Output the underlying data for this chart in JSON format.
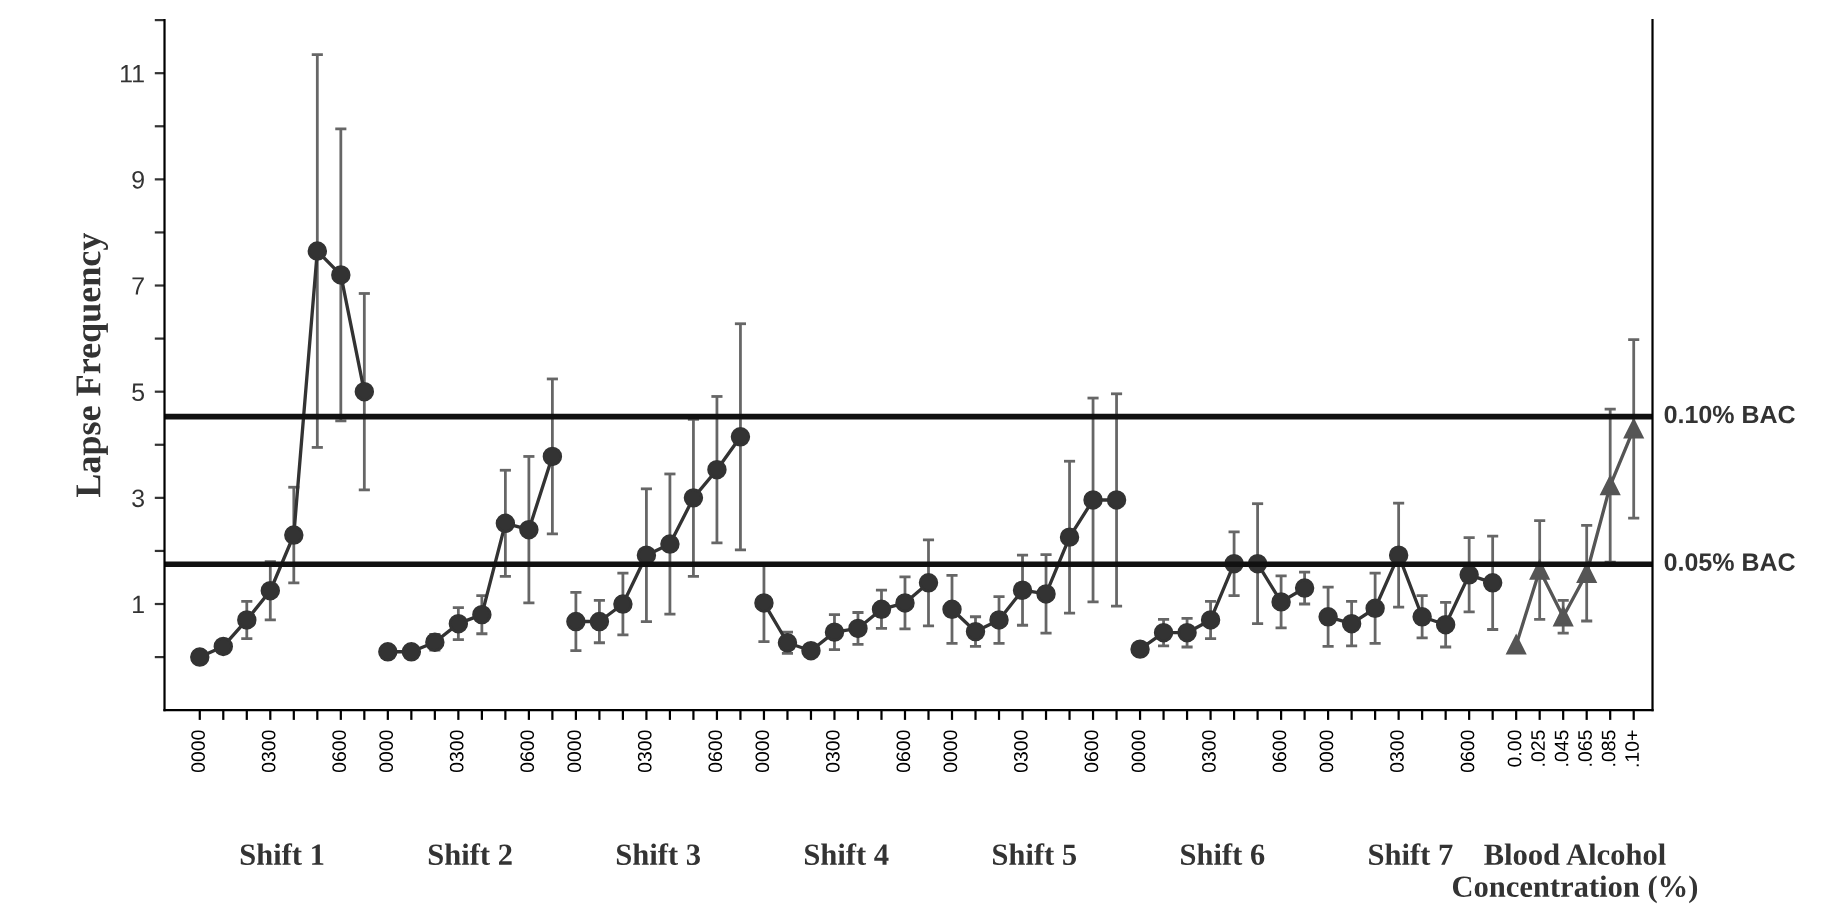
{
  "chart_data": {
    "type": "line",
    "ylabel": "Lapse Frequency",
    "categories": [
      "0000",
      null,
      null,
      "0300",
      null,
      null,
      "0600",
      null,
      "0000",
      null,
      null,
      "0300",
      null,
      null,
      "0600",
      null,
      "0000",
      null,
      null,
      "0300",
      null,
      null,
      "0600",
      null,
      "0000",
      null,
      null,
      "0300",
      null,
      null,
      "0600",
      null,
      "0000",
      null,
      null,
      "0300",
      null,
      null,
      "0600",
      null,
      "0000",
      null,
      null,
      "0300",
      null,
      null,
      "0600",
      null,
      "0000",
      null,
      null,
      "0300",
      null,
      null,
      "0600",
      null,
      "0.00",
      ".025",
      ".045",
      ".065",
      ".085",
      ".10+"
    ],
    "series": [
      {
        "color": "#333333",
        "marker": "circle",
        "values": [
          0.0,
          0.2,
          0.7,
          1.25,
          2.3,
          7.65,
          7.2,
          5.0,
          null,
          null,
          null,
          null,
          null,
          null,
          null,
          null,
          null,
          null,
          null,
          null,
          null,
          null,
          null,
          null,
          null,
          null,
          null,
          null,
          null,
          null,
          null,
          null,
          null,
          null,
          null,
          null,
          null,
          null,
          null,
          null,
          null,
          null,
          null,
          null,
          null,
          null,
          null,
          null,
          null,
          null,
          null,
          null,
          null,
          null,
          null,
          null,
          null,
          null,
          null,
          null,
          null,
          null
        ],
        "errors": [
          null,
          null,
          0.35,
          0.55,
          0.9,
          3.7,
          2.75,
          1.85,
          null,
          null,
          null,
          null,
          null,
          null,
          null,
          null,
          null,
          null,
          null,
          null,
          null,
          null,
          null,
          null,
          null,
          null,
          null,
          null,
          null,
          null,
          null,
          null,
          null,
          null,
          null,
          null,
          null,
          null,
          null,
          null,
          null,
          null,
          null,
          null,
          null,
          null,
          null,
          null,
          null,
          null,
          null,
          null,
          null,
          null,
          null,
          null,
          null,
          null,
          null,
          null,
          null,
          null
        ]
      },
      {
        "color": "#333333",
        "marker": "circle",
        "values": [
          null,
          null,
          null,
          null,
          null,
          null,
          null,
          null,
          0.1,
          0.1,
          0.28,
          0.63,
          0.8,
          2.52,
          2.4,
          3.78,
          null,
          null,
          null,
          null,
          null,
          null,
          null,
          null,
          null,
          null,
          null,
          null,
          null,
          null,
          null,
          null,
          null,
          null,
          null,
          null,
          null,
          null,
          null,
          null,
          null,
          null,
          null,
          null,
          null,
          null,
          null,
          null,
          null,
          null,
          null,
          null,
          null,
          null,
          null,
          null,
          null,
          null,
          null,
          null,
          null,
          null
        ],
        "errors": [
          null,
          null,
          null,
          null,
          null,
          null,
          null,
          null,
          null,
          null,
          0.15,
          0.3,
          0.36,
          1.0,
          1.38,
          1.46,
          null,
          null,
          null,
          null,
          null,
          null,
          null,
          null,
          null,
          null,
          null,
          null,
          null,
          null,
          null,
          null,
          null,
          null,
          null,
          null,
          null,
          null,
          null,
          null,
          null,
          null,
          null,
          null,
          null,
          null,
          null,
          null,
          null,
          null,
          null,
          null,
          null,
          null,
          null,
          null,
          null,
          null,
          null,
          null,
          null,
          null
        ]
      },
      {
        "color": "#333333",
        "marker": "circle",
        "values": [
          null,
          null,
          null,
          null,
          null,
          null,
          null,
          null,
          null,
          null,
          null,
          null,
          null,
          null,
          null,
          null,
          0.67,
          0.67,
          1.0,
          1.92,
          2.13,
          3.0,
          3.53,
          4.15,
          null,
          null,
          null,
          null,
          null,
          null,
          null,
          null,
          null,
          null,
          null,
          null,
          null,
          null,
          null,
          null,
          null,
          null,
          null,
          null,
          null,
          null,
          null,
          null,
          null,
          null,
          null,
          null,
          null,
          null,
          null,
          null,
          null,
          null,
          null,
          null,
          null,
          null
        ],
        "errors": [
          null,
          null,
          null,
          null,
          null,
          null,
          null,
          null,
          null,
          null,
          null,
          null,
          null,
          null,
          null,
          null,
          0.55,
          0.4,
          0.58,
          1.25,
          1.32,
          1.48,
          1.38,
          2.13,
          null,
          null,
          null,
          null,
          null,
          null,
          null,
          null,
          null,
          null,
          null,
          null,
          null,
          null,
          null,
          null,
          null,
          null,
          null,
          null,
          null,
          null,
          null,
          null,
          null,
          null,
          null,
          null,
          null,
          null,
          null,
          null,
          null,
          null,
          null,
          null,
          null,
          null
        ]
      },
      {
        "color": "#333333",
        "marker": "circle",
        "values": [
          null,
          null,
          null,
          null,
          null,
          null,
          null,
          null,
          null,
          null,
          null,
          null,
          null,
          null,
          null,
          null,
          null,
          null,
          null,
          null,
          null,
          null,
          null,
          null,
          1.02,
          0.27,
          0.12,
          0.47,
          0.54,
          0.9,
          1.02,
          1.4,
          null,
          null,
          null,
          null,
          null,
          null,
          null,
          null,
          null,
          null,
          null,
          null,
          null,
          null,
          null,
          null,
          null,
          null,
          null,
          null,
          null,
          null,
          null,
          null,
          null,
          null,
          null,
          null,
          null,
          null
        ],
        "errors": [
          null,
          null,
          null,
          null,
          null,
          null,
          null,
          null,
          null,
          null,
          null,
          null,
          null,
          null,
          null,
          null,
          null,
          null,
          null,
          null,
          null,
          null,
          null,
          null,
          0.73,
          0.2,
          null,
          0.33,
          0.3,
          0.36,
          0.49,
          0.81,
          null,
          null,
          null,
          null,
          null,
          null,
          null,
          null,
          null,
          null,
          null,
          null,
          null,
          null,
          null,
          null,
          null,
          null,
          null,
          null,
          null,
          null,
          null,
          null,
          null,
          null,
          null,
          null,
          null,
          null
        ]
      },
      {
        "color": "#333333",
        "marker": "circle",
        "values": [
          null,
          null,
          null,
          null,
          null,
          null,
          null,
          null,
          null,
          null,
          null,
          null,
          null,
          null,
          null,
          null,
          null,
          null,
          null,
          null,
          null,
          null,
          null,
          null,
          null,
          null,
          null,
          null,
          null,
          null,
          null,
          null,
          0.9,
          0.48,
          0.7,
          1.26,
          1.19,
          2.26,
          2.96,
          2.96,
          null,
          null,
          null,
          null,
          null,
          null,
          null,
          null,
          null,
          null,
          null,
          null,
          null,
          null,
          null,
          null,
          null,
          null,
          null,
          null,
          null,
          null
        ],
        "errors": [
          null,
          null,
          null,
          null,
          null,
          null,
          null,
          null,
          null,
          null,
          null,
          null,
          null,
          null,
          null,
          null,
          null,
          null,
          null,
          null,
          null,
          null,
          null,
          null,
          null,
          null,
          null,
          null,
          null,
          null,
          null,
          null,
          0.64,
          0.28,
          0.44,
          0.66,
          0.74,
          1.43,
          1.92,
          2.0,
          null,
          null,
          null,
          null,
          null,
          null,
          null,
          null,
          null,
          null,
          null,
          null,
          null,
          null,
          null,
          null,
          null,
          null,
          null,
          null,
          null,
          null
        ]
      },
      {
        "color": "#333333",
        "marker": "circle",
        "values": [
          null,
          null,
          null,
          null,
          null,
          null,
          null,
          null,
          null,
          null,
          null,
          null,
          null,
          null,
          null,
          null,
          null,
          null,
          null,
          null,
          null,
          null,
          null,
          null,
          null,
          null,
          null,
          null,
          null,
          null,
          null,
          null,
          null,
          null,
          null,
          null,
          null,
          null,
          null,
          null,
          0.15,
          0.46,
          0.46,
          0.7,
          1.76,
          1.76,
          1.04,
          1.3,
          null,
          null,
          null,
          null,
          null,
          null,
          null,
          null,
          null,
          null,
          null,
          null,
          null,
          null
        ],
        "errors": [
          null,
          null,
          null,
          null,
          null,
          null,
          null,
          null,
          null,
          null,
          null,
          null,
          null,
          null,
          null,
          null,
          null,
          null,
          null,
          null,
          null,
          null,
          null,
          null,
          null,
          null,
          null,
          null,
          null,
          null,
          null,
          null,
          null,
          null,
          null,
          null,
          null,
          null,
          null,
          null,
          null,
          0.25,
          0.27,
          0.35,
          0.6,
          1.13,
          0.49,
          0.3,
          null,
          null,
          null,
          null,
          null,
          null,
          null,
          null,
          null,
          null,
          null,
          null,
          null,
          null
        ]
      },
      {
        "color": "#333333",
        "marker": "circle",
        "values": [
          null,
          null,
          null,
          null,
          null,
          null,
          null,
          null,
          null,
          null,
          null,
          null,
          null,
          null,
          null,
          null,
          null,
          null,
          null,
          null,
          null,
          null,
          null,
          null,
          null,
          null,
          null,
          null,
          null,
          null,
          null,
          null,
          null,
          null,
          null,
          null,
          null,
          null,
          null,
          null,
          null,
          null,
          null,
          null,
          null,
          null,
          null,
          null,
          0.76,
          0.63,
          0.92,
          1.92,
          0.76,
          0.61,
          1.55,
          1.4,
          null,
          null,
          null,
          null,
          null,
          null
        ],
        "errors": [
          null,
          null,
          null,
          null,
          null,
          null,
          null,
          null,
          null,
          null,
          null,
          null,
          null,
          null,
          null,
          null,
          null,
          null,
          null,
          null,
          null,
          null,
          null,
          null,
          null,
          null,
          null,
          null,
          null,
          null,
          null,
          null,
          null,
          null,
          null,
          null,
          null,
          null,
          null,
          null,
          null,
          null,
          null,
          null,
          null,
          null,
          null,
          null,
          0.56,
          0.42,
          0.66,
          0.98,
          0.4,
          0.42,
          0.7,
          0.88,
          null,
          null,
          null,
          null,
          null,
          null
        ]
      },
      {
        "color": "#555555",
        "marker": "triangle",
        "values": [
          null,
          null,
          null,
          null,
          null,
          null,
          null,
          null,
          null,
          null,
          null,
          null,
          null,
          null,
          null,
          null,
          null,
          null,
          null,
          null,
          null,
          null,
          null,
          null,
          null,
          null,
          null,
          null,
          null,
          null,
          null,
          null,
          null,
          null,
          null,
          null,
          null,
          null,
          null,
          null,
          null,
          null,
          null,
          null,
          null,
          null,
          null,
          null,
          null,
          null,
          null,
          null,
          null,
          null,
          null,
          null,
          0.23,
          1.64,
          0.76,
          1.58,
          3.23,
          4.3
        ],
        "errors": [
          null,
          null,
          null,
          null,
          null,
          null,
          null,
          null,
          null,
          null,
          null,
          null,
          null,
          null,
          null,
          null,
          null,
          null,
          null,
          null,
          null,
          null,
          null,
          null,
          null,
          null,
          null,
          null,
          null,
          null,
          null,
          null,
          null,
          null,
          null,
          null,
          null,
          null,
          null,
          null,
          null,
          null,
          null,
          null,
          null,
          null,
          null,
          null,
          null,
          null,
          null,
          null,
          null,
          null,
          null,
          null,
          null,
          0.93,
          0.31,
          0.9,
          1.44,
          1.68
        ]
      }
    ],
    "ylim": [
      -1,
      12
    ],
    "yticks": [
      {
        "value": 0,
        "label": null
      },
      1,
      {
        "value": 2,
        "label": null
      },
      3,
      {
        "value": 4,
        "label": null
      },
      5,
      {
        "value": 6,
        "label": null
      },
      7,
      {
        "value": 8,
        "label": null
      },
      9,
      {
        "value": 10,
        "label": null
      },
      11,
      {
        "value": 12,
        "label": null
      }
    ],
    "ref_lines": [
      {
        "axis": "y",
        "value": 4.53,
        "label": "0.10% BAC",
        "color": "#111111"
      },
      {
        "axis": "y",
        "value": 1.75,
        "label": "0.05% BAC",
        "color": "#111111"
      }
    ],
    "annotations": [
      "Shift 1",
      "Shift 2",
      "Shift 3",
      "Shift 4",
      "Shift 5",
      "Shift 6",
      "Shift 7",
      "Blood Alcohol\nConcentration (%)"
    ],
    "line_style": "solid",
    "grid": false,
    "legend": false
  }
}
